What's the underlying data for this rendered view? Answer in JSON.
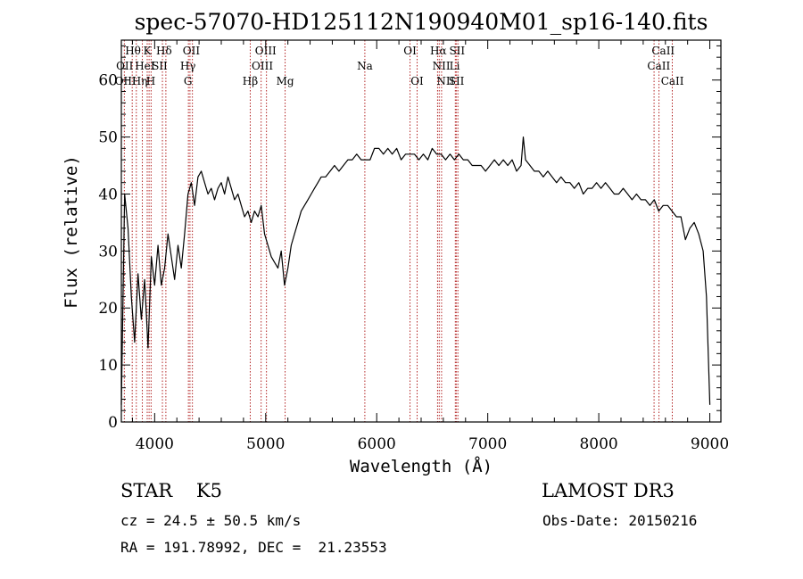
{
  "chart_data": {
    "type": "line",
    "title": "spec-57070-HD125112N190940M01_sp16-140.fits",
    "xlabel": "Wavelength (Å)",
    "ylabel": "Flux (relative)",
    "xlim": [
      3700,
      9100
    ],
    "ylim": [
      0,
      67
    ],
    "xticks": [
      4000,
      5000,
      6000,
      7000,
      8000,
      9000
    ],
    "yticks": [
      0,
      10,
      20,
      30,
      40,
      50,
      60
    ],
    "line_color": "#000000",
    "marker_color": "#b22222",
    "series": [
      {
        "name": "flux",
        "x": [
          3700,
          3730,
          3760,
          3790,
          3820,
          3850,
          3880,
          3910,
          3940,
          3970,
          4000,
          4030,
          4060,
          4090,
          4120,
          4150,
          4180,
          4210,
          4240,
          4270,
          4300,
          4330,
          4360,
          4390,
          4420,
          4450,
          4480,
          4510,
          4540,
          4570,
          4600,
          4630,
          4660,
          4690,
          4720,
          4750,
          4780,
          4810,
          4840,
          4870,
          4900,
          4930,
          4960,
          4990,
          5020,
          5050,
          5080,
          5110,
          5140,
          5170,
          5200,
          5230,
          5260,
          5290,
          5320,
          5350,
          5380,
          5410,
          5440,
          5470,
          5500,
          5540,
          5580,
          5620,
          5660,
          5700,
          5740,
          5780,
          5820,
          5860,
          5900,
          5940,
          5980,
          6020,
          6060,
          6100,
          6140,
          6180,
          6220,
          6260,
          6300,
          6340,
          6380,
          6420,
          6460,
          6500,
          6540,
          6580,
          6620,
          6660,
          6700,
          6740,
          6780,
          6820,
          6860,
          6900,
          6940,
          6980,
          7020,
          7060,
          7100,
          7140,
          7180,
          7220,
          7260,
          7300,
          7320,
          7340,
          7380,
          7420,
          7460,
          7500,
          7540,
          7580,
          7620,
          7660,
          7700,
          7740,
          7780,
          7820,
          7860,
          7900,
          7940,
          7980,
          8020,
          8060,
          8100,
          8140,
          8180,
          8220,
          8260,
          8300,
          8340,
          8380,
          8420,
          8460,
          8500,
          8540,
          8580,
          8620,
          8660,
          8700,
          8740,
          8780,
          8820,
          8860,
          8900,
          8940,
          8970,
          9000
        ],
        "y": [
          3,
          40,
          34,
          22,
          14,
          26,
          18,
          25,
          13,
          29,
          24,
          31,
          24,
          27,
          33,
          29,
          25,
          31,
          27,
          33,
          40,
          42,
          38,
          43,
          44,
          42,
          40,
          41,
          39,
          41,
          42,
          40,
          43,
          41,
          39,
          40,
          38,
          36,
          37,
          35,
          37,
          36,
          38,
          33,
          31,
          29,
          28,
          27,
          30,
          24,
          27,
          31,
          33,
          35,
          37,
          38,
          39,
          40,
          41,
          42,
          43,
          43,
          44,
          45,
          44,
          45,
          46,
          46,
          47,
          46,
          46,
          46,
          48,
          48,
          47,
          48,
          47,
          48,
          46,
          47,
          47,
          47,
          46,
          47,
          46,
          48,
          47,
          47,
          46,
          47,
          46,
          47,
          46,
          46,
          45,
          45,
          45,
          44,
          45,
          46,
          45,
          46,
          45,
          46,
          44,
          45,
          50,
          46,
          45,
          44,
          44,
          43,
          44,
          43,
          42,
          43,
          42,
          42,
          41,
          42,
          40,
          41,
          41,
          42,
          41,
          42,
          41,
          40,
          40,
          41,
          40,
          39,
          40,
          39,
          39,
          38,
          39,
          37,
          38,
          38,
          37,
          36,
          36,
          32,
          34,
          35,
          33,
          30,
          22,
          3
        ]
      }
    ],
    "lines": [
      {
        "name": "OII",
        "x": 3727
      },
      {
        "name": "Hθ",
        "x": 3798
      },
      {
        "name": "OIII",
        "x": 3835
      },
      {
        "name": "Hη",
        "x": 3889
      },
      {
        "name": "K",
        "x": 3933
      },
      {
        "name": "HeI",
        "x": 3950
      },
      {
        "name": "H",
        "x": 3968
      },
      {
        "name": "SII",
        "x": 4070
      },
      {
        "name": "Hδ",
        "x": 4101
      },
      {
        "name": "G",
        "x": 4304
      },
      {
        "name": "OII",
        "x": 4318
      },
      {
        "name": "Hγ",
        "x": 4340
      },
      {
        "name": "Hβ",
        "x": 4861
      },
      {
        "name": "OIII",
        "x": 4959
      },
      {
        "name": "OIII",
        "x": 5007
      },
      {
        "name": "Mg",
        "x": 5175
      },
      {
        "name": "Na",
        "x": 5893
      },
      {
        "name": "OI",
        "x": 6300
      },
      {
        "name": "OI",
        "x": 6364
      },
      {
        "name": "NII",
        "x": 6548
      },
      {
        "name": "Hα",
        "x": 6563
      },
      {
        "name": "NII",
        "x": 6584
      },
      {
        "name": "Li",
        "x": 6708
      },
      {
        "name": "SII",
        "x": 6716
      },
      {
        "name": "SII",
        "x": 6731
      },
      {
        "name": "CaII",
        "x": 8498
      },
      {
        "name": "CaII",
        "x": 8542
      },
      {
        "name": "CaII",
        "x": 8662
      }
    ],
    "line_labels": [
      {
        "text": "Hθ",
        "x": 3805,
        "row": 1
      },
      {
        "text": "K",
        "x": 3934,
        "row": 1
      },
      {
        "text": "Hδ",
        "x": 4085,
        "row": 1
      },
      {
        "text": "OII",
        "x": 4330,
        "row": 1
      },
      {
        "text": "OIII",
        "x": 5000,
        "row": 1
      },
      {
        "text": "OI",
        "x": 6300,
        "row": 1
      },
      {
        "text": "Hα",
        "x": 6555,
        "row": 1
      },
      {
        "text": "SII",
        "x": 6724,
        "row": 1
      },
      {
        "text": "CaII",
        "x": 8580,
        "row": 1
      },
      {
        "text": "OII",
        "x": 3730,
        "row": 2
      },
      {
        "text": "HeI",
        "x": 3912,
        "row": 2
      },
      {
        "text": "SII",
        "x": 4045,
        "row": 2
      },
      {
        "text": "Hγ",
        "x": 4300,
        "row": 2
      },
      {
        "text": "OIII",
        "x": 4970,
        "row": 2
      },
      {
        "text": "Na",
        "x": 5893,
        "row": 2
      },
      {
        "text": "NII",
        "x": 6582,
        "row": 2
      },
      {
        "text": "Li",
        "x": 6702,
        "row": 2
      },
      {
        "text": "CaII",
        "x": 8540,
        "row": 2
      },
      {
        "text": "OIII",
        "x": 3738,
        "row": 3
      },
      {
        "text": "Hη",
        "x": 3865,
        "row": 3
      },
      {
        "text": "H",
        "x": 3965,
        "row": 3
      },
      {
        "text": "G",
        "x": 4300,
        "row": 3
      },
      {
        "text": "Hβ",
        "x": 4861,
        "row": 3
      },
      {
        "text": "Mg",
        "x": 5175,
        "row": 3
      },
      {
        "text": "OI",
        "x": 6364,
        "row": 3
      },
      {
        "text": "NII",
        "x": 6620,
        "row": 3
      },
      {
        "text": "SII",
        "x": 6718,
        "row": 3
      },
      {
        "text": "CaII",
        "x": 8663,
        "row": 3
      }
    ]
  },
  "info": {
    "class_label": "STAR    K5",
    "survey": "LAMOST DR3",
    "cz": "cz = 24.5 ± 50.5 km/s",
    "obs_date": "Obs-Date: 20150216",
    "radec": "RA = 191.78992, DEC =  21.23553"
  }
}
